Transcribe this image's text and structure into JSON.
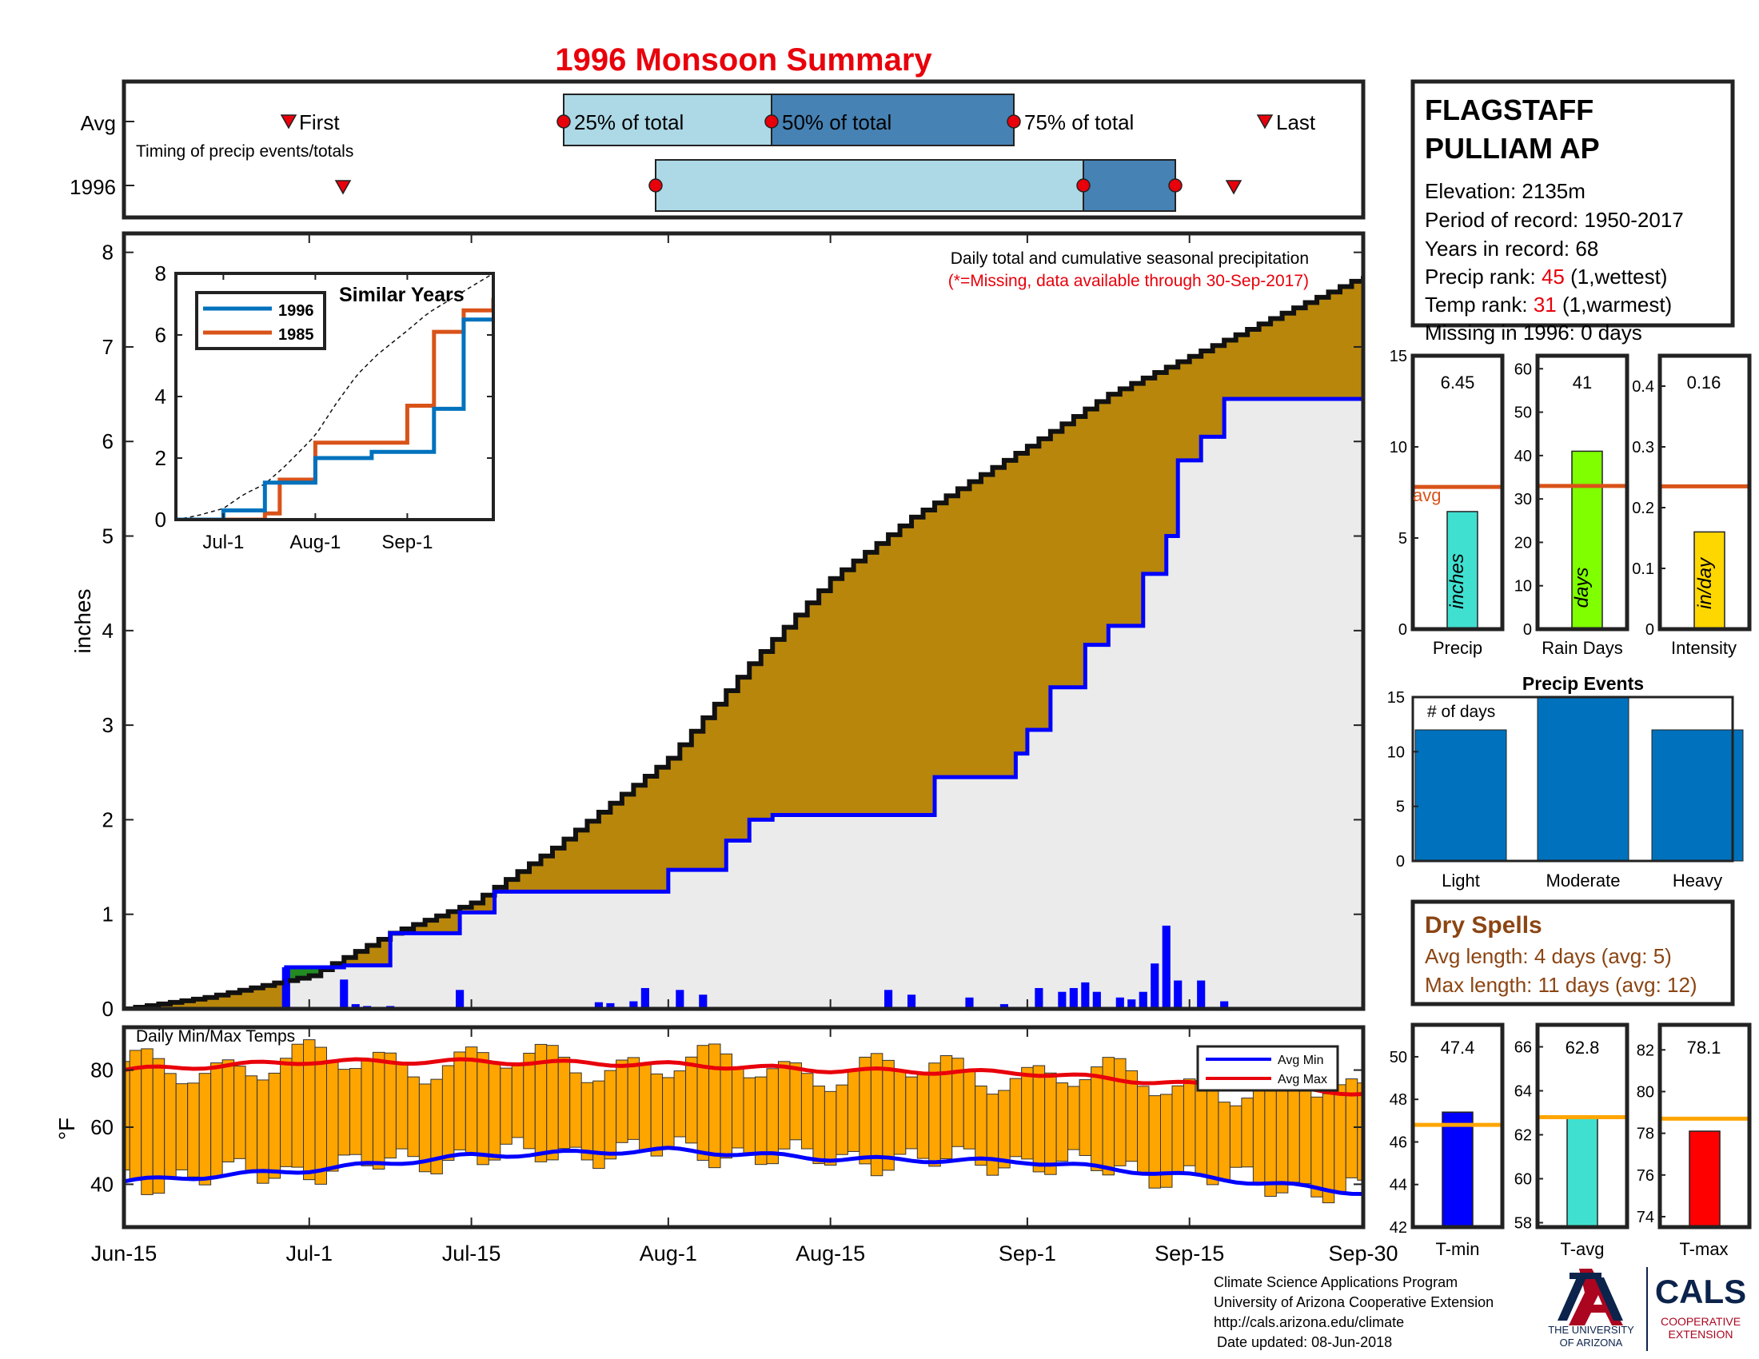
{
  "title": "1996 Monsoon Summary",
  "timing": {
    "avg_label": "Avg",
    "year_label": "1996",
    "caption": "Timing of precip events/totals",
    "first_label": "First",
    "last_label": "Last",
    "q25_label": "25% of total",
    "q50_label": "50% of total",
    "q75_label": "75% of total"
  },
  "station": {
    "name_line1": "FLAGSTAFF",
    "name_line2": "PULLIAM AP",
    "elevation": "Elevation: 2135m",
    "period": "Period of record: 1950-2017",
    "years": "Years in record: 68",
    "precip_rank_label": "Precip rank: ",
    "precip_rank_value": "45",
    "precip_rank_note": " (1,wettest)",
    "temp_rank_label": "Temp rank: ",
    "temp_rank_value": "31",
    "temp_rank_note": " (1,warmest)",
    "missing": "Missing in 1996: 0 days"
  },
  "main_chart": {
    "note1": "Daily total and cumulative seasonal precipitation",
    "note2": "(*=Missing, data available through 30-Sep-2017)",
    "ylabel": "inches",
    "yticks": [
      "0",
      "1",
      "2",
      "3",
      "4",
      "5",
      "6",
      "7",
      "8"
    ],
    "xticks": [
      "Jun-15",
      "Jul-1",
      "Jul-15",
      "Aug-1",
      "Aug-15",
      "Sep-1",
      "Sep-15",
      "Sep-30"
    ]
  },
  "inset": {
    "title": "Similar Years",
    "legend": [
      "1996",
      "1985"
    ],
    "yticks": [
      "0",
      "2",
      "4",
      "6",
      "8"
    ],
    "xticks": [
      "Jul-1",
      "Aug-1",
      "Sep-1"
    ]
  },
  "stats": {
    "precip_value": "6.45",
    "precip_unit": "inches",
    "precip_xlabel": "Precip",
    "avg_label": "avg",
    "raindays_value": "41",
    "raindays_unit": "days",
    "raindays_xlabel": "Rain Days",
    "intensity_value": "0.16",
    "intensity_unit": "in/day",
    "intensity_xlabel": "Intensity"
  },
  "events": {
    "title": "Precip Events",
    "ylabel": "# of days",
    "labels": [
      "Light",
      "Moderate",
      "Heavy"
    ]
  },
  "dry_spells": {
    "title": "Dry Spells",
    "avg": "Avg length: 4 days (avg: 5)",
    "max": "Max length: 11 days (avg: 12)"
  },
  "temps": {
    "caption": "Daily Min/Max Temps",
    "ylabel": "°F",
    "legend_min": "Avg Min",
    "legend_max": "Avg Max",
    "tmin_value": "47.4",
    "tmin_label": "T-min",
    "tavg_value": "62.8",
    "tavg_label": "T-avg",
    "tmax_value": "78.1",
    "tmax_label": "T-max"
  },
  "footer": {
    "line1": "Climate Science Applications Program",
    "line2": "University of Arizona Cooperative Extension",
    "line3": "http://cals.arizona.edu/climate",
    "line4": "Date updated: 08-Jun-2018",
    "ua_line1": "THE UNIVERSITY",
    "ua_line2": "OF ARIZONA",
    "cals": "CALS",
    "cals_sub1": "COOPERATIVE",
    "cals_sub2": "EXTENSION"
  },
  "colors": {
    "title_red": "#e8000b",
    "light_blue": "#add8e6",
    "mid_blue": "#4682b4",
    "brown": "#b8860b",
    "gray_fill": "#ebebeb",
    "line_blue": "#0000ff",
    "orange_avg": "#d95319",
    "cyan_bar": "#40e0d0",
    "green_bar": "#7fff00",
    "gold_bar": "#ffd700",
    "event_blue": "#0072bd",
    "dry_brown": "#8b4513",
    "temp_orange": "#ffa500"
  },
  "chart_data": [
    {
      "type": "area",
      "title": "Daily total and cumulative seasonal precipitation",
      "ylabel": "inches",
      "ylim": [
        0,
        8.2
      ],
      "xlim_dates": [
        "Jun-15",
        "Sep-30"
      ],
      "series": [
        {
          "name": "Avg",
          "x_dates": [
            "Jun-15",
            "Jun-22",
            "Jul-1",
            "Jul-8",
            "Jul-15",
            "Jul-22",
            "Aug-1",
            "Aug-8",
            "Aug-15",
            "Aug-22",
            "Sep-1",
            "Sep-8",
            "Sep-15",
            "Sep-22",
            "Sep-30"
          ],
          "values": [
            0.0,
            0.12,
            0.35,
            0.8,
            1.12,
            1.7,
            2.65,
            3.65,
            4.55,
            5.2,
            5.95,
            6.5,
            6.9,
            7.3,
            7.75
          ]
        },
        {
          "name": "1996",
          "x_dates": [
            "Jun-15",
            "Jun-28",
            "Jun-29",
            "Jul-4",
            "Jul-8",
            "Jul-14",
            "Jul-17",
            "Jul-30",
            "Aug-1",
            "Aug-6",
            "Aug-8",
            "Aug-10",
            "Aug-22",
            "Aug-24",
            "Aug-31",
            "Sep-1",
            "Sep-3",
            "Sep-6",
            "Sep-8",
            "Sep-11",
            "Sep-13",
            "Sep-14",
            "Sep-16",
            "Sep-18",
            "Sep-30"
          ],
          "values": [
            0.0,
            0.0,
            0.44,
            0.46,
            0.8,
            1.02,
            1.24,
            1.24,
            1.47,
            1.78,
            2.0,
            2.05,
            2.05,
            2.45,
            2.7,
            2.95,
            3.4,
            3.85,
            4.05,
            4.6,
            5.0,
            5.8,
            6.05,
            6.45,
            6.45
          ]
        }
      ],
      "daily_bars": [
        {
          "date": "Jun-29",
          "value": 0.44
        },
        {
          "date": "Jul-4",
          "value": 0.31
        },
        {
          "date": "Jul-5",
          "value": 0.05
        },
        {
          "date": "Jul-6",
          "value": 0.03
        },
        {
          "date": "Jul-8",
          "value": 0.03
        },
        {
          "date": "Jul-14",
          "value": 0.2
        },
        {
          "date": "Jul-26",
          "value": 0.07
        },
        {
          "date": "Jul-27",
          "value": 0.06
        },
        {
          "date": "Jul-29",
          "value": 0.08
        },
        {
          "date": "Jul-30",
          "value": 0.22
        },
        {
          "date": "Aug-2",
          "value": 0.2
        },
        {
          "date": "Aug-4",
          "value": 0.15
        },
        {
          "date": "Aug-20",
          "value": 0.2
        },
        {
          "date": "Aug-22",
          "value": 0.15
        },
        {
          "date": "Aug-27",
          "value": 0.12
        },
        {
          "date": "Aug-30",
          "value": 0.05
        },
        {
          "date": "Sep-2",
          "value": 0.22
        },
        {
          "date": "Sep-4",
          "value": 0.18
        },
        {
          "date": "Sep-5",
          "value": 0.22
        },
        {
          "date": "Sep-6",
          "value": 0.28
        },
        {
          "date": "Sep-7",
          "value": 0.18
        },
        {
          "date": "Sep-9",
          "value": 0.12
        },
        {
          "date": "Sep-10",
          "value": 0.1
        },
        {
          "date": "Sep-11",
          "value": 0.18
        },
        {
          "date": "Sep-12",
          "value": 0.48
        },
        {
          "date": "Sep-13",
          "value": 0.88
        },
        {
          "date": "Sep-14",
          "value": 0.3
        },
        {
          "date": "Sep-16",
          "value": 0.3
        },
        {
          "date": "Sep-18",
          "value": 0.08
        }
      ]
    },
    {
      "type": "line",
      "title": "Similar Years",
      "ylim": [
        0,
        8
      ],
      "series": [
        {
          "name": "1996",
          "values": [
            0,
            0,
            0.3,
            1.2,
            1.2,
            2.0,
            2.0,
            2.2,
            2.2,
            3.6,
            6.5,
            6.5
          ]
        },
        {
          "name": "1985",
          "values": [
            0,
            0,
            0,
            0.2,
            1.3,
            2.5,
            2.5,
            2.5,
            3.7,
            6.1,
            6.8,
            7.2
          ]
        }
      ],
      "x_dates": [
        "Jun-15",
        "Jun-25",
        "Jul-1",
        "Jul-15",
        "Jul-20",
        "Aug-1",
        "Aug-10",
        "Aug-20",
        "Sep-1",
        "Sep-10",
        "Sep-20",
        "Sep-30"
      ]
    },
    {
      "type": "bar",
      "categories": [
        "Precip",
        "Rain Days",
        "Intensity"
      ],
      "values": [
        6.45,
        41,
        0.16
      ],
      "averages": [
        7.8,
        33,
        0.235
      ]
    },
    {
      "type": "bar",
      "title": "Precip Events",
      "categories": [
        "Light",
        "Moderate",
        "Heavy"
      ],
      "values": [
        12,
        15,
        12
      ],
      "ylim": [
        0,
        15
      ]
    },
    {
      "type": "bar",
      "title": "Daily Min/Max Temps",
      "ylabel": "°F",
      "series": [
        {
          "name": "Avg Min",
          "x_dates": [
            "Jun-15",
            "Jul-1",
            "Jul-15",
            "Aug-1",
            "Aug-15",
            "Sep-1",
            "Sep-15",
            "Sep-30"
          ],
          "values": [
            41,
            45,
            50,
            52,
            49,
            48,
            43,
            37
          ]
        },
        {
          "name": "Avg Max",
          "x_dates": [
            "Jun-15",
            "Jul-1",
            "Jul-15",
            "Aug-1",
            "Aug-15",
            "Sep-1",
            "Sep-15",
            "Sep-30"
          ],
          "values": [
            80,
            83,
            83,
            82,
            80,
            79,
            75,
            72
          ]
        }
      ]
    },
    {
      "type": "bar",
      "categories": [
        "T-min",
        "T-avg",
        "T-max"
      ],
      "values": [
        47.4,
        62.8,
        78.1
      ],
      "averages": [
        46.8,
        62.8,
        78.7
      ]
    }
  ]
}
